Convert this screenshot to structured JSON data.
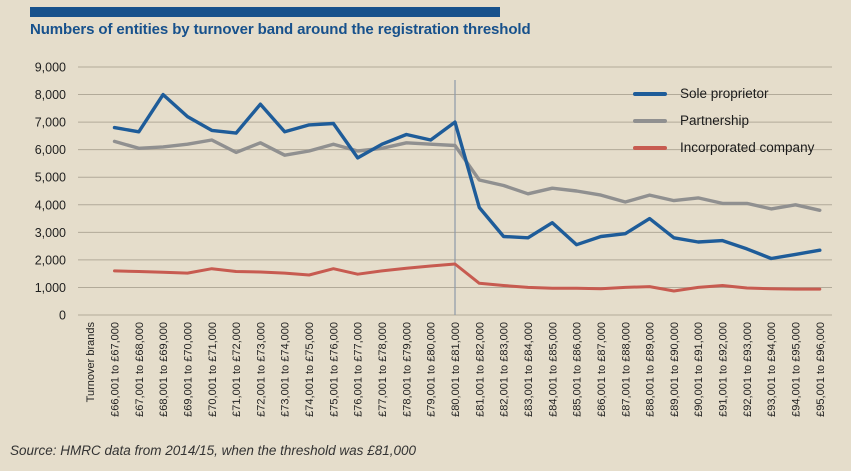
{
  "header": {
    "title": "Numbers of entities by turnover band around the registration threshold"
  },
  "source_note": "Source: HMRC data from 2014/15, when the threshold was £81,000",
  "colors": {
    "background": "#e5ddcb",
    "title_blue": "#17518c",
    "accent_bar": "#17518c",
    "gridline": "#b2aa99",
    "threshold_line": "#8e99a8",
    "axis_text": "#1f1f1f",
    "sole_proprietor": "#1e5c99",
    "partnership": "#909090",
    "incorporated_company": "#c75b50"
  },
  "chart_data": {
    "type": "line",
    "title": "Numbers of entities by turnover band around the registration threshold",
    "x_axis_label": "Turnover brands",
    "ylabel": "",
    "ylim": [
      0,
      9000
    ],
    "ytick_step": 1000,
    "grid": "horizontal",
    "legend_position": "top-right",
    "threshold": {
      "at_category": "£80,001 to £81,000",
      "index": 14,
      "note": "registration threshold £81,000"
    },
    "categories": [
      "£66,001 to £67,000",
      "£67,001 to £68,000",
      "£68,001 to £69,000",
      "£69,001 to £70,000",
      "£70,001 to £71,000",
      "£71,001 to £72,000",
      "£72,001 to £73,000",
      "£73,001 to £74,000",
      "£74,001 to £75,000",
      "£75,001 to £76,000",
      "£76,001 to £77,000",
      "£77,001 to £78,000",
      "£78,001 to £79,000",
      "£79,001 to £80,000",
      "£80,001 to £81,000",
      "£81,001 to £82,000",
      "£82,001 to £83,000",
      "£83,001 to £84,000",
      "£84,001 to £85,000",
      "£85,001 to £86,000",
      "£86,001 to £87,000",
      "£87,001 to £88,000",
      "£88,001 to £89,000",
      "£89,001 to £90,000",
      "£90,001 to £91,000",
      "£91,001 to £92,000",
      "£92,001 to £93,000",
      "£93,001 to £94,000",
      "£94,001 to £95,000",
      "£95,001 to £96,000"
    ],
    "series": [
      {
        "name": "Sole proprietor",
        "color": "#1e5c99",
        "values": [
          6800,
          6650,
          8000,
          7200,
          6700,
          6600,
          7650,
          6650,
          6900,
          6950,
          5700,
          6200,
          6550,
          6350,
          7000,
          3900,
          2850,
          2800,
          3350,
          2550,
          2850,
          2950,
          3500,
          2800,
          2650,
          2700,
          2400,
          2050,
          2200,
          2350
        ]
      },
      {
        "name": "Partnership",
        "color": "#909090",
        "values": [
          6300,
          6050,
          6100,
          6200,
          6350,
          5900,
          6250,
          5800,
          5950,
          6200,
          5950,
          6050,
          6250,
          6200,
          6150,
          4900,
          4700,
          4400,
          4600,
          4500,
          4350,
          4100,
          4350,
          4150,
          4250,
          4050,
          4050,
          3850,
          4000,
          3800
        ]
      },
      {
        "name": "Incorporated company",
        "color": "#c75b50",
        "values": [
          1600,
          1580,
          1550,
          1520,
          1680,
          1580,
          1560,
          1520,
          1450,
          1680,
          1480,
          1600,
          1700,
          1780,
          1850,
          1150,
          1070,
          1000,
          970,
          970,
          950,
          1000,
          1030,
          870,
          1000,
          1070,
          980,
          950,
          940,
          940
        ]
      }
    ]
  }
}
